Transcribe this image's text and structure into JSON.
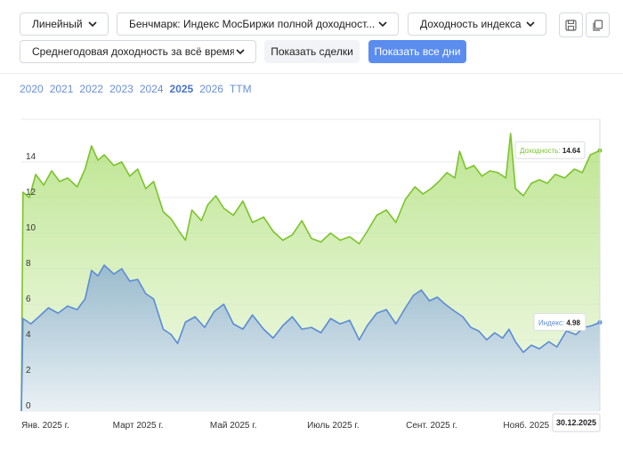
{
  "toolbar": {
    "scale_select": "Линейный",
    "benchmark_select": "Бенчмарк: Индекс МосБиржи полной доходност...",
    "metric_select": "Доходность индекса",
    "period_select": "Среднегодовая доходность за всё время",
    "show_trades_label": "Показать сделки",
    "show_all_days_label": "Показать все дни"
  },
  "years": [
    {
      "label": "2020",
      "active": false
    },
    {
      "label": "2021",
      "active": false
    },
    {
      "label": "2022",
      "active": false
    },
    {
      "label": "2023",
      "active": false
    },
    {
      "label": "2024",
      "active": false
    },
    {
      "label": "2025",
      "active": true
    },
    {
      "label": "2026",
      "active": false
    },
    {
      "label": "TTM",
      "active": false
    }
  ],
  "colors": {
    "green": "#7bc42a",
    "blue": "#5b8bd6",
    "primary_button": "#5b8def"
  },
  "chart_data": {
    "type": "area",
    "x_labels": [
      "Янв. 2025 г.",
      "Март 2025 г.",
      "Май 2025 г.",
      "Июль 2025 г.",
      "Сент. 2025 г.",
      "Нояб. 2025 г."
    ],
    "y_ticks": [
      0,
      2,
      4,
      6,
      8,
      10,
      12,
      14
    ],
    "ylim": [
      0,
      16
    ],
    "x_range": [
      "2025-01-01",
      "2025-12-30"
    ],
    "grid": true,
    "series": [
      {
        "name": "Доходность",
        "color": "#7bc42a",
        "last_value": 14.64,
        "points": [
          [
            "2025-01-01",
            0
          ],
          [
            "2025-01-02",
            12.3
          ],
          [
            "2025-01-06",
            12.0
          ],
          [
            "2025-01-10",
            13.3
          ],
          [
            "2025-01-15",
            12.7
          ],
          [
            "2025-01-20",
            13.5
          ],
          [
            "2025-01-25",
            12.9
          ],
          [
            "2025-01-30",
            13.1
          ],
          [
            "2025-02-05",
            12.6
          ],
          [
            "2025-02-10",
            13.6
          ],
          [
            "2025-02-14",
            14.9
          ],
          [
            "2025-02-18",
            14.1
          ],
          [
            "2025-02-22",
            14.4
          ],
          [
            "2025-02-28",
            13.8
          ],
          [
            "2025-03-05",
            14.0
          ],
          [
            "2025-03-10",
            13.2
          ],
          [
            "2025-03-15",
            13.6
          ],
          [
            "2025-03-20",
            12.5
          ],
          [
            "2025-03-25",
            12.9
          ],
          [
            "2025-03-31",
            11.2
          ],
          [
            "2025-04-05",
            10.8
          ],
          [
            "2025-04-10",
            10.1
          ],
          [
            "2025-04-14",
            9.6
          ],
          [
            "2025-04-18",
            11.3
          ],
          [
            "2025-04-24",
            10.7
          ],
          [
            "2025-04-28",
            11.6
          ],
          [
            "2025-05-03",
            12.1
          ],
          [
            "2025-05-08",
            11.4
          ],
          [
            "2025-05-14",
            11.0
          ],
          [
            "2025-05-20",
            11.8
          ],
          [
            "2025-05-26",
            10.6
          ],
          [
            "2025-06-02",
            10.9
          ],
          [
            "2025-06-08",
            10.1
          ],
          [
            "2025-06-14",
            9.6
          ],
          [
            "2025-06-20",
            9.9
          ],
          [
            "2025-06-26",
            10.7
          ],
          [
            "2025-07-02",
            9.7
          ],
          [
            "2025-07-08",
            9.5
          ],
          [
            "2025-07-14",
            10.0
          ],
          [
            "2025-07-20",
            9.6
          ],
          [
            "2025-07-26",
            9.8
          ],
          [
            "2025-08-01",
            9.4
          ],
          [
            "2025-08-06",
            10.1
          ],
          [
            "2025-08-12",
            11.0
          ],
          [
            "2025-08-18",
            11.3
          ],
          [
            "2025-08-24",
            10.6
          ],
          [
            "2025-08-30",
            11.9
          ],
          [
            "2025-09-05",
            12.6
          ],
          [
            "2025-09-10",
            12.2
          ],
          [
            "2025-09-15",
            12.5
          ],
          [
            "2025-09-20",
            12.9
          ],
          [
            "2025-09-25",
            13.4
          ],
          [
            "2025-09-30",
            13.1
          ],
          [
            "2025-10-03",
            14.6
          ],
          [
            "2025-10-07",
            13.6
          ],
          [
            "2025-10-12",
            13.8
          ],
          [
            "2025-10-17",
            13.2
          ],
          [
            "2025-10-22",
            13.5
          ],
          [
            "2025-10-27",
            13.4
          ],
          [
            "2025-11-01",
            13.1
          ],
          [
            "2025-11-04",
            15.6
          ],
          [
            "2025-11-07",
            12.5
          ],
          [
            "2025-11-12",
            12.1
          ],
          [
            "2025-11-17",
            12.8
          ],
          [
            "2025-11-22",
            13.0
          ],
          [
            "2025-11-27",
            12.8
          ],
          [
            "2025-12-02",
            13.3
          ],
          [
            "2025-12-08",
            13.1
          ],
          [
            "2025-12-14",
            13.6
          ],
          [
            "2025-12-19",
            13.4
          ],
          [
            "2025-12-24",
            14.4
          ],
          [
            "2025-12-30",
            14.64
          ]
        ]
      },
      {
        "name": "Индекс",
        "color": "#5b8bd6",
        "last_value": 4.98,
        "points": [
          [
            "2025-01-01",
            0
          ],
          [
            "2025-01-02",
            5.2
          ],
          [
            "2025-01-07",
            4.9
          ],
          [
            "2025-01-12",
            5.3
          ],
          [
            "2025-01-18",
            5.8
          ],
          [
            "2025-01-24",
            5.5
          ],
          [
            "2025-01-30",
            5.9
          ],
          [
            "2025-02-05",
            5.7
          ],
          [
            "2025-02-10",
            6.3
          ],
          [
            "2025-02-14",
            7.9
          ],
          [
            "2025-02-18",
            7.6
          ],
          [
            "2025-02-22",
            8.2
          ],
          [
            "2025-02-28",
            7.7
          ],
          [
            "2025-03-05",
            8.0
          ],
          [
            "2025-03-10",
            7.3
          ],
          [
            "2025-03-15",
            7.4
          ],
          [
            "2025-03-20",
            6.6
          ],
          [
            "2025-03-25",
            6.3
          ],
          [
            "2025-03-31",
            4.6
          ],
          [
            "2025-04-05",
            4.3
          ],
          [
            "2025-04-09",
            3.8
          ],
          [
            "2025-04-14",
            5.0
          ],
          [
            "2025-04-20",
            5.3
          ],
          [
            "2025-04-26",
            4.7
          ],
          [
            "2025-05-02",
            5.6
          ],
          [
            "2025-05-08",
            6.0
          ],
          [
            "2025-05-14",
            4.9
          ],
          [
            "2025-05-20",
            4.6
          ],
          [
            "2025-05-26",
            5.4
          ],
          [
            "2025-06-02",
            4.6
          ],
          [
            "2025-06-08",
            4.1
          ],
          [
            "2025-06-14",
            4.8
          ],
          [
            "2025-06-20",
            5.3
          ],
          [
            "2025-06-26",
            4.6
          ],
          [
            "2025-07-02",
            4.7
          ],
          [
            "2025-07-08",
            4.4
          ],
          [
            "2025-07-14",
            5.2
          ],
          [
            "2025-07-20",
            4.9
          ],
          [
            "2025-07-26",
            5.1
          ],
          [
            "2025-08-01",
            4.0
          ],
          [
            "2025-08-06",
            4.8
          ],
          [
            "2025-08-12",
            5.5
          ],
          [
            "2025-08-18",
            5.7
          ],
          [
            "2025-08-24",
            4.9
          ],
          [
            "2025-08-30",
            5.8
          ],
          [
            "2025-09-04",
            6.5
          ],
          [
            "2025-09-09",
            6.8
          ],
          [
            "2025-09-14",
            6.2
          ],
          [
            "2025-09-19",
            6.4
          ],
          [
            "2025-09-24",
            6.0
          ],
          [
            "2025-09-30",
            5.6
          ],
          [
            "2025-10-05",
            5.3
          ],
          [
            "2025-10-10",
            4.7
          ],
          [
            "2025-10-15",
            4.5
          ],
          [
            "2025-10-20",
            4.0
          ],
          [
            "2025-10-25",
            4.4
          ],
          [
            "2025-10-30",
            4.1
          ],
          [
            "2025-11-03",
            4.6
          ],
          [
            "2025-11-07",
            3.9
          ],
          [
            "2025-11-12",
            3.3
          ],
          [
            "2025-11-17",
            3.7
          ],
          [
            "2025-11-22",
            3.5
          ],
          [
            "2025-11-28",
            3.9
          ],
          [
            "2025-12-03",
            3.6
          ],
          [
            "2025-12-09",
            4.5
          ],
          [
            "2025-12-15",
            4.3
          ],
          [
            "2025-12-20",
            4.7
          ],
          [
            "2025-12-25",
            4.8
          ],
          [
            "2025-12-30",
            4.98
          ]
        ]
      }
    ],
    "crosshair_date_label": "30.12.2025"
  }
}
